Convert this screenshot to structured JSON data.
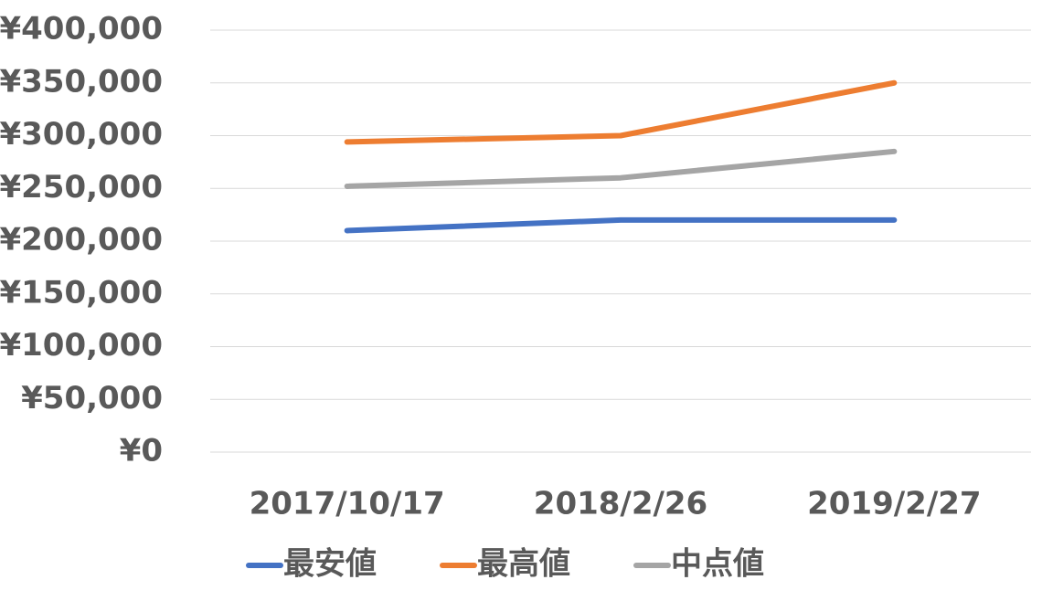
{
  "chart_data": {
    "type": "line",
    "categories": [
      "2017/10/17",
      "2018/2/26",
      "2019/2/27"
    ],
    "series": [
      {
        "name": "最安値",
        "color": "#4472c4",
        "values": [
          210000,
          220000,
          220000
        ]
      },
      {
        "name": "最高値",
        "color": "#ed7d31",
        "values": [
          294000,
          300000,
          350000
        ]
      },
      {
        "name": "中点値",
        "color": "#a5a5a5",
        "values": [
          252000,
          260000,
          285000
        ]
      }
    ],
    "ylim": [
      0,
      400000
    ],
    "yticks": [
      {
        "value": 0,
        "label": "¥0"
      },
      {
        "value": 50000,
        "label": "¥50,000"
      },
      {
        "value": 100000,
        "label": "¥100,000"
      },
      {
        "value": 150000,
        "label": "¥150,000"
      },
      {
        "value": 200000,
        "label": "¥200,000"
      },
      {
        "value": 250000,
        "label": "¥250,000"
      },
      {
        "value": 300000,
        "label": "¥300,000"
      },
      {
        "value": 350000,
        "label": "¥350,000"
      },
      {
        "value": 400000,
        "label": "¥400,000"
      }
    ],
    "grid": true,
    "legend": "bottom"
  }
}
